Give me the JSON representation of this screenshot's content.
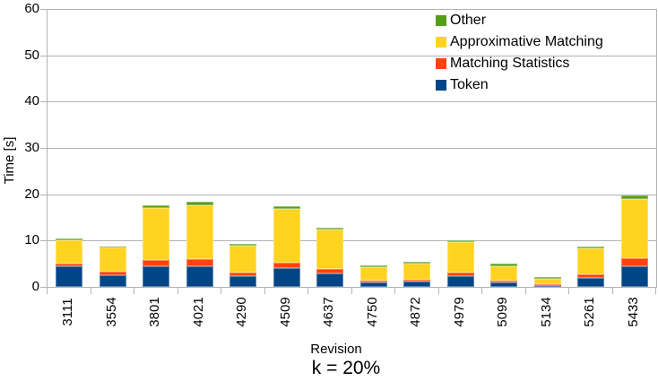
{
  "chart_data": {
    "type": "bar",
    "stacked": true,
    "title": "k = 20%",
    "xlabel": "Revision",
    "ylabel": "Time [s]",
    "ylim": [
      0,
      60
    ],
    "ytick_step": 10,
    "grid": true,
    "legend_position": "top-right-overlay",
    "categories": [
      "3111",
      "3554",
      "3801",
      "4021",
      "4290",
      "4509",
      "4637",
      "4750",
      "4872",
      "4979",
      "5099",
      "5134",
      "5261",
      "5433"
    ],
    "series": [
      {
        "name": "Token",
        "color": "#004586",
        "values": [
          4.4,
          2.5,
          4.4,
          4.5,
          2.3,
          4.0,
          3.0,
          0.9,
          1.2,
          2.3,
          0.9,
          0.2,
          2.0,
          4.5
        ]
      },
      {
        "name": "Matching Statistics",
        "color": "#FF420E",
        "values": [
          0.6,
          0.7,
          1.5,
          1.5,
          0.8,
          1.3,
          0.8,
          0.4,
          0.4,
          0.8,
          0.5,
          0.3,
          0.8,
          1.6
        ]
      },
      {
        "name": "Approximative Matching",
        "color": "#FFD320",
        "values": [
          5.0,
          5.3,
          11.2,
          11.7,
          5.8,
          11.6,
          8.5,
          2.9,
          3.5,
          6.5,
          3.1,
          1.2,
          5.5,
          12.9
        ]
      },
      {
        "name": "Other",
        "color": "#579D1C",
        "values": [
          0.4,
          0.3,
          0.5,
          0.6,
          0.4,
          0.6,
          0.5,
          0.4,
          0.4,
          0.4,
          0.5,
          0.4,
          0.5,
          0.7
        ]
      }
    ],
    "totals": [
      10.4,
      8.8,
      17.6,
      18.3,
      9.3,
      17.5,
      12.8,
      4.6,
      5.5,
      10.0,
      5.0,
      2.1,
      8.8,
      19.7
    ],
    "legend_order": [
      "Other",
      "Approximative Matching",
      "Matching Statistics",
      "Token"
    ],
    "colors": {
      "grid": "#b3b3b3",
      "axis": "#b3b3b3",
      "text": "#000000",
      "background": "#ffffff"
    }
  }
}
